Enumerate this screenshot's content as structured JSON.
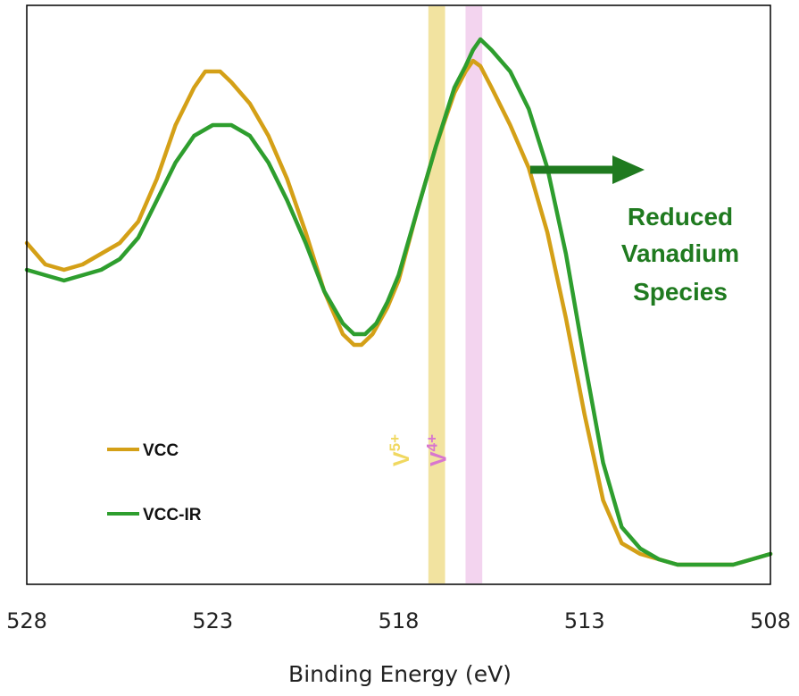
{
  "chart_data": {
    "type": "line",
    "title": "",
    "xlabel": "Binding Energy (eV)",
    "ylabel": "",
    "xlim": [
      528,
      508
    ],
    "ylim": [
      0,
      1
    ],
    "x_reversed": true,
    "grid": false,
    "x_ticks": [
      "528",
      "523",
      "518",
      "513",
      "508"
    ],
    "legend": {
      "placement": "bottom-left"
    },
    "series": [
      {
        "name": "VCC",
        "color": "#D4A017",
        "points": [
          [
            528,
            0.62
          ],
          [
            527.5,
            0.58
          ],
          [
            527,
            0.57
          ],
          [
            526.5,
            0.58
          ],
          [
            526,
            0.6
          ],
          [
            525.5,
            0.62
          ],
          [
            525,
            0.66
          ],
          [
            524.5,
            0.74
          ],
          [
            524,
            0.84
          ],
          [
            523.5,
            0.91
          ],
          [
            523.2,
            0.94
          ],
          [
            522.8,
            0.94
          ],
          [
            522.5,
            0.92
          ],
          [
            522,
            0.88
          ],
          [
            521.5,
            0.82
          ],
          [
            521,
            0.74
          ],
          [
            520.5,
            0.64
          ],
          [
            520,
            0.53
          ],
          [
            519.5,
            0.45
          ],
          [
            519.2,
            0.43
          ],
          [
            519,
            0.43
          ],
          [
            518.7,
            0.45
          ],
          [
            518.3,
            0.5
          ],
          [
            518,
            0.55
          ],
          [
            517.5,
            0.68
          ],
          [
            517,
            0.8
          ],
          [
            516.5,
            0.9
          ],
          [
            516.2,
            0.94
          ],
          [
            516,
            0.96
          ],
          [
            515.8,
            0.95
          ],
          [
            515.5,
            0.91
          ],
          [
            515,
            0.84
          ],
          [
            514.5,
            0.76
          ],
          [
            514,
            0.64
          ],
          [
            513.5,
            0.48
          ],
          [
            513,
            0.3
          ],
          [
            512.5,
            0.14
          ],
          [
            512,
            0.06
          ],
          [
            511.5,
            0.04
          ],
          [
            511,
            0.03
          ],
          [
            510.5,
            0.02
          ],
          [
            510,
            0.02
          ],
          [
            509.5,
            0.02
          ],
          [
            509,
            0.02
          ],
          [
            508.5,
            0.03
          ],
          [
            508,
            0.04
          ]
        ]
      },
      {
        "name": "VCC-IR",
        "color": "#2E9E2E",
        "points": [
          [
            528,
            0.57
          ],
          [
            527.5,
            0.56
          ],
          [
            527,
            0.55
          ],
          [
            526.5,
            0.56
          ],
          [
            526,
            0.57
          ],
          [
            525.5,
            0.59
          ],
          [
            525,
            0.63
          ],
          [
            524.5,
            0.7
          ],
          [
            524,
            0.77
          ],
          [
            523.5,
            0.82
          ],
          [
            523,
            0.84
          ],
          [
            522.5,
            0.84
          ],
          [
            522,
            0.82
          ],
          [
            521.5,
            0.77
          ],
          [
            521,
            0.7
          ],
          [
            520.5,
            0.62
          ],
          [
            520,
            0.53
          ],
          [
            519.5,
            0.47
          ],
          [
            519.2,
            0.45
          ],
          [
            518.9,
            0.45
          ],
          [
            518.6,
            0.47
          ],
          [
            518.3,
            0.51
          ],
          [
            518,
            0.56
          ],
          [
            517.5,
            0.68
          ],
          [
            517,
            0.8
          ],
          [
            516.5,
            0.91
          ],
          [
            516.2,
            0.95
          ],
          [
            516,
            0.98
          ],
          [
            515.8,
            1.0
          ],
          [
            515.5,
            0.98
          ],
          [
            515,
            0.94
          ],
          [
            514.5,
            0.87
          ],
          [
            514,
            0.76
          ],
          [
            513.5,
            0.6
          ],
          [
            513,
            0.4
          ],
          [
            512.5,
            0.21
          ],
          [
            512,
            0.09
          ],
          [
            511.5,
            0.05
          ],
          [
            511,
            0.03
          ],
          [
            510.5,
            0.02
          ],
          [
            510,
            0.02
          ],
          [
            509.5,
            0.02
          ],
          [
            509,
            0.02
          ],
          [
            508.5,
            0.03
          ],
          [
            508,
            0.04
          ]
        ]
      }
    ],
    "bands": [
      {
        "label": "V",
        "superscript": "5+",
        "x_from": 517.2,
        "x_to": 516.75,
        "color": "#F2E3A0",
        "label_color": "#F0D860"
      },
      {
        "label": "V",
        "superscript": "4+",
        "x_from": 516.2,
        "x_to": 515.75,
        "color": "#F3D4EF",
        "label_color": "#D876CF"
      }
    ],
    "annotation": {
      "lines": [
        "Reduced",
        "Vanadium",
        "Species"
      ],
      "color": "#1F7A1F",
      "arrow_direction": "right"
    }
  }
}
